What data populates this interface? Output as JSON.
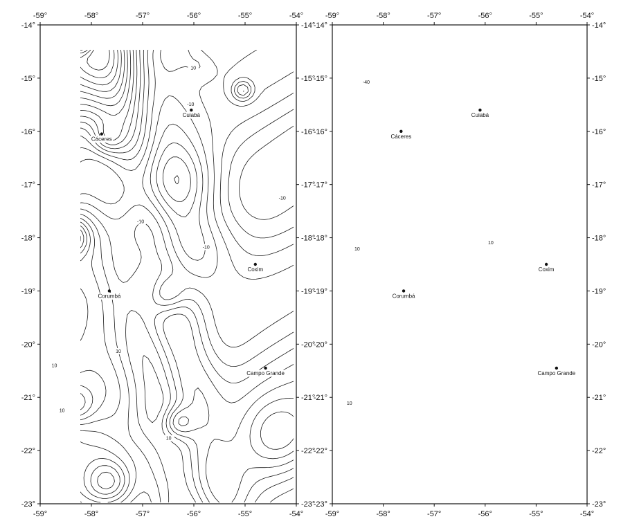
{
  "maps": [
    {
      "id": "left",
      "lon_ticks": [
        "-59°",
        "-58°",
        "-57°",
        "-56°",
        "-55°",
        "-54°"
      ],
      "lat_ticks": [
        "-14°",
        "-15°",
        "-16°",
        "-17°",
        "-18°",
        "-19°",
        "-20°",
        "-21°",
        "-22°",
        "-23°"
      ],
      "lon_range": [
        -59,
        -54
      ],
      "lat_range": [
        -23,
        -14
      ],
      "cities": [
        {
          "name": "Cáceres",
          "lon": -57.8,
          "lat": -16.05
        },
        {
          "name": "Cuiabá",
          "lon": -56.05,
          "lat": -15.6
        },
        {
          "name": "Coxim",
          "lon": -54.8,
          "lat": -18.5
        },
        {
          "name": "Corumbá",
          "lon": -57.65,
          "lat": -19.0
        },
        {
          "name": "Campo Grande",
          "lon": -54.6,
          "lat": -20.45
        }
      ],
      "contour_labels": [
        "10",
        "10",
        "10",
        "-10",
        "-10",
        "10",
        "-10",
        "-10",
        "10"
      ]
    },
    {
      "id": "right",
      "lon_ticks": [
        "-59°",
        "-58°",
        "-57°",
        "-56°",
        "-55°",
        "-54°"
      ],
      "lat_ticks": [
        "-14°",
        "-15°",
        "-16°",
        "-17°",
        "-18°",
        "-19°",
        "-20°",
        "-21°",
        "-22°",
        "-23°"
      ],
      "lon_range": [
        -59,
        -54
      ],
      "lat_range": [
        -23,
        -14
      ],
      "cities": [
        {
          "name": "Cáceres",
          "lon": -57.65,
          "lat": -16.0
        },
        {
          "name": "Cuiabá",
          "lon": -56.1,
          "lat": -15.6
        },
        {
          "name": "Coxim",
          "lon": -54.8,
          "lat": -18.5
        },
        {
          "name": "Corumbá",
          "lon": -57.6,
          "lat": -19.0
        },
        {
          "name": "Campo Grande",
          "lon": -54.6,
          "lat": -20.45
        }
      ],
      "contour_labels": [
        "-40",
        "10",
        "10",
        "10"
      ]
    }
  ]
}
